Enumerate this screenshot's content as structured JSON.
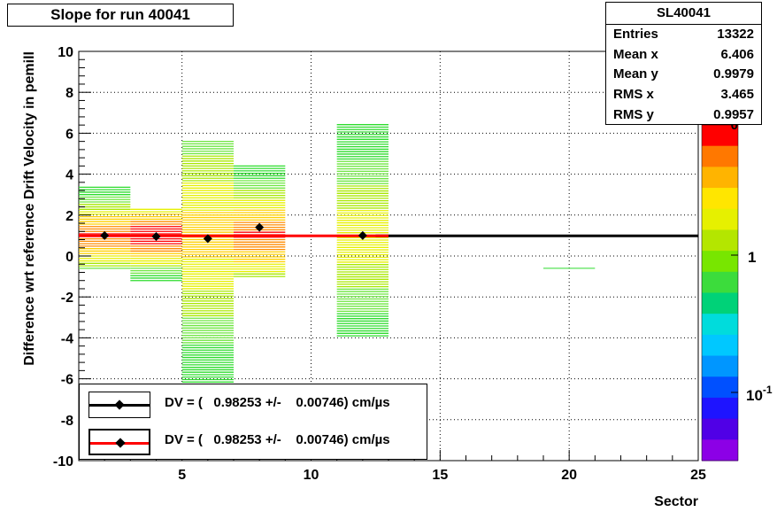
{
  "title": "Slope for run 40041",
  "stats": {
    "name": "SL40041",
    "rows": [
      {
        "label": "Entries",
        "value": "13322"
      },
      {
        "label": "Mean x",
        "value": "6.406"
      },
      {
        "label": "Mean y",
        "value": "0.9979"
      },
      {
        "label": "RMS x",
        "value": "3.465"
      },
      {
        "label": "RMS y",
        "value": "0.9957"
      }
    ]
  },
  "legend": [
    {
      "text": "DV = (   0.98253 +/-    0.00746) cm/µs",
      "color": "#000000"
    },
    {
      "text": "DV = (   0.98253 +/-    0.00746) cm/µs",
      "color": "#ff0000"
    }
  ],
  "chart_data": {
    "type": "heatmap",
    "xlabel": "Sector",
    "ylabel": "Difference wrt reference Drift Velocity in pemill",
    "xlim": [
      1,
      25
    ],
    "ylim": [
      -10,
      10
    ],
    "x_ticks": [
      "5",
      "10",
      "15",
      "20",
      "25"
    ],
    "y_ticks": [
      "-10",
      "-8",
      "-6",
      "-4",
      "-2",
      "0",
      "2",
      "4",
      "6",
      "8",
      "10"
    ],
    "z_ticks": [
      "1",
      "10^-1"
    ],
    "z_scale": "log",
    "grid": true,
    "columns": [
      {
        "x0": 1,
        "x1": 3,
        "ymin": -0.6,
        "ymax": 3.4
      },
      {
        "x0": 3,
        "x1": 5,
        "ymin": -1.2,
        "ymax": 2.3
      },
      {
        "x0": 5,
        "x1": 7,
        "ymin": -6.4,
        "ymax": 5.7
      },
      {
        "x0": 7,
        "x1": 9,
        "ymin": -1.0,
        "ymax": 4.4
      },
      {
        "x0": 11,
        "x1": 13,
        "ymin": -3.9,
        "ymax": 6.5
      },
      {
        "x0": 19,
        "x1": 21,
        "ymin": -0.6,
        "ymax": -0.6
      }
    ],
    "points": [
      {
        "x": 2,
        "y": 1.0
      },
      {
        "x": 4,
        "y": 0.95
      },
      {
        "x": 6,
        "y": 0.85
      },
      {
        "x": 8,
        "y": 1.4
      },
      {
        "x": 12,
        "y": 1.0
      }
    ],
    "fits": [
      {
        "name": "DV black",
        "x0": 12.5,
        "x1": 25,
        "y": 0.98253,
        "color": "#000000"
      },
      {
        "name": "DV red",
        "x0": 1,
        "x1": 13,
        "y": 0.98253,
        "color": "#ff0000"
      }
    ]
  }
}
